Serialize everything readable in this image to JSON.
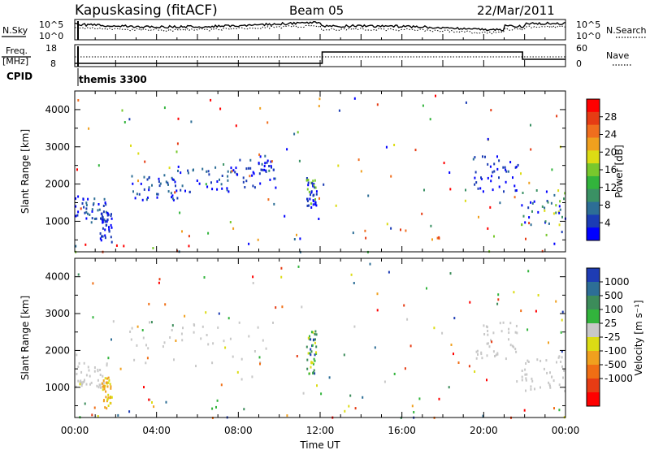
{
  "header": {
    "site": "Kapuskasing (fitACF)",
    "beam": "Beam 05",
    "date": "22/Mar/2011"
  },
  "noise_panel": {
    "left_label": "N.Sky",
    "right_label": "N.Search",
    "ticks": [
      "10^5",
      "10^0"
    ],
    "right_ticks": [
      "10^5",
      "10^0"
    ]
  },
  "freq_panel": {
    "left_label_top": "Freq.",
    "left_label_bottom": "[MHz]",
    "ticks": [
      "18",
      "8"
    ],
    "right_label": "Nave",
    "right_ticks": [
      "60",
      "0"
    ]
  },
  "cpid": {
    "label": "CPID",
    "program": "themis 3300"
  },
  "chart_data": [
    {
      "type": "heatmap",
      "name": "Power",
      "ylabel": "Slant Range [km]",
      "xlabel": "Time UT",
      "x_ticks": [
        "00:00",
        "04:00",
        "08:00",
        "12:00",
        "16:00",
        "20:00",
        "00:00"
      ],
      "x_range_hours": [
        0,
        24
      ],
      "y_ticks": [
        1000,
        2000,
        3000,
        4000
      ],
      "y_range_km": [
        180,
        4500
      ],
      "colorbar": {
        "label": "Power [dB]",
        "ticks": [
          "4",
          "8",
          "12",
          "16",
          "20",
          "24",
          "28"
        ],
        "colors": [
          "#0000ff",
          "#1b3cb4",
          "#2d6e96",
          "#3a9164",
          "#32b43c",
          "#78c82d",
          "#dcdc14",
          "#f0a01e",
          "#f06e1e",
          "#e63c14",
          "#ff0000"
        ]
      },
      "echo_regions": [
        {
          "t": [
            0.0,
            1.6
          ],
          "r": [
            1000,
            1700
          ],
          "c": [
            0,
            1,
            2
          ]
        },
        {
          "t": [
            1.2,
            1.8
          ],
          "r": [
            450,
            1300
          ],
          "c": [
            0,
            1
          ]
        },
        {
          "t": [
            2.5,
            5.0
          ],
          "r": [
            1600,
            2300
          ],
          "c": [
            0,
            1,
            2
          ]
        },
        {
          "t": [
            5.0,
            8.0
          ],
          "r": [
            1800,
            2500
          ],
          "c": [
            0,
            1,
            2
          ]
        },
        {
          "t": [
            8.0,
            9.8
          ],
          "r": [
            1900,
            2800
          ],
          "c": [
            0,
            1,
            2
          ]
        },
        {
          "t": [
            11.3,
            11.8
          ],
          "r": [
            1400,
            2200
          ],
          "c": [
            0,
            1,
            5
          ]
        },
        {
          "t": [
            19.5,
            21.7
          ],
          "r": [
            1800,
            2800
          ],
          "c": [
            0,
            1
          ]
        },
        {
          "t": [
            21.8,
            24.0
          ],
          "r": [
            900,
            1900
          ],
          "c": [
            0,
            1,
            2,
            3,
            5,
            6
          ]
        },
        {
          "t": [
            0.0,
            24.0
          ],
          "r": [
            200,
            900
          ],
          "c": [
            0,
            1,
            2,
            3,
            4,
            5,
            6,
            7,
            8,
            9,
            10
          ]
        }
      ]
    },
    {
      "type": "heatmap",
      "name": "Velocity",
      "ylabel": "Slant Range [km]",
      "xlabel": "Time UT",
      "x_ticks": [
        "00:00",
        "04:00",
        "08:00",
        "12:00",
        "16:00",
        "20:00",
        "00:00"
      ],
      "x_range_hours": [
        0,
        24
      ],
      "y_ticks": [
        1000,
        2000,
        3000,
        4000
      ],
      "y_range_km": [
        180,
        4500
      ],
      "colorbar": {
        "label": "Velocity [m s⁻¹]",
        "ticks": [
          "1000",
          "500",
          "100",
          "25",
          "-25",
          "-100",
          "-500",
          "-1000"
        ],
        "colors": [
          "#1e3cb4",
          "#2d6e96",
          "#3c8c5a",
          "#32b43c",
          "#c8c8c8",
          "#dcdc14",
          "#f0a01e",
          "#f06e14",
          "#e63c14",
          "#ff0000"
        ]
      },
      "echo_regions": [
        {
          "t": [
            0.0,
            1.6
          ],
          "r": [
            1000,
            1700
          ],
          "c": [
            4
          ]
        },
        {
          "t": [
            1.3,
            1.8
          ],
          "r": [
            450,
            1300
          ],
          "c": [
            5,
            6
          ]
        },
        {
          "t": [
            2.5,
            9.8
          ],
          "r": [
            1600,
            2800
          ],
          "c": [
            4
          ]
        },
        {
          "t": [
            11.3,
            11.8
          ],
          "r": [
            1400,
            2600
          ],
          "c": [
            0,
            2,
            3,
            5
          ]
        },
        {
          "t": [
            19.5,
            21.7
          ],
          "r": [
            1800,
            2800
          ],
          "c": [
            4
          ]
        },
        {
          "t": [
            21.8,
            24.0
          ],
          "r": [
            900,
            1900
          ],
          "c": [
            4
          ]
        },
        {
          "t": [
            0.0,
            24.0
          ],
          "r": [
            200,
            900
          ],
          "c": [
            0,
            1,
            2,
            3,
            4,
            5,
            6,
            7,
            8,
            9
          ]
        }
      ]
    }
  ]
}
